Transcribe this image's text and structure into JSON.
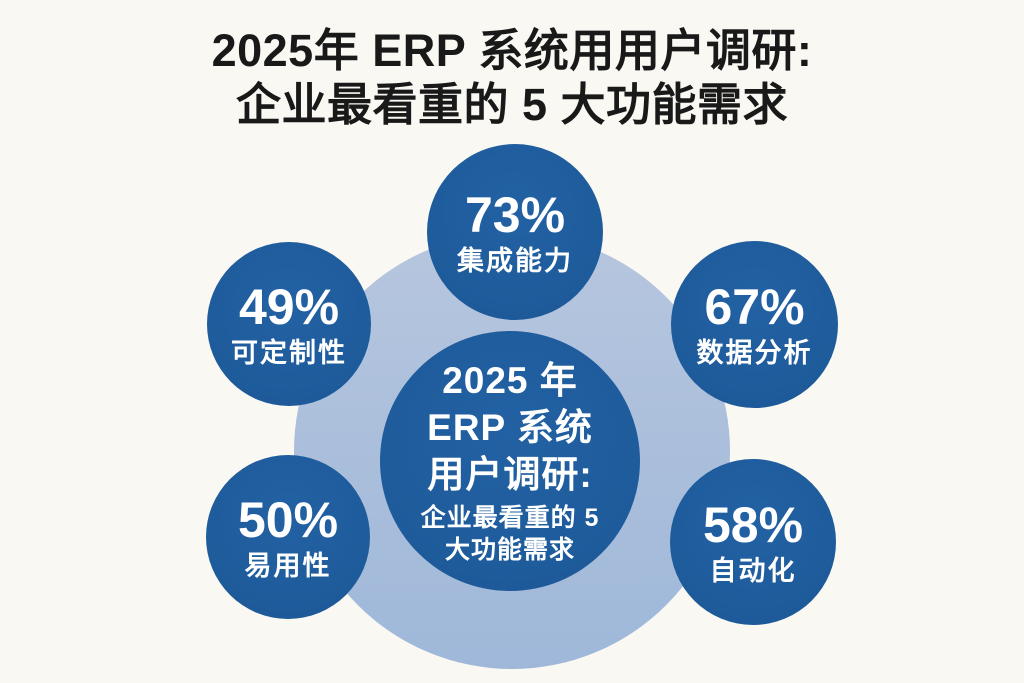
{
  "meta": {
    "background_color": "#faf8f2",
    "bubble_color": "#1e5b9b",
    "halo_color": "#a9bedb",
    "title_color": "#191919",
    "bubble_text_color": "#ffffff"
  },
  "title": {
    "line1": "2025年 ERP 系统用用户调研:",
    "line2": "企业最看重的 5 大功能需求"
  },
  "center": {
    "line1": "2025 年",
    "line2": "ERP 系统",
    "line3": "用户调研:",
    "line4": "企业最看重的 5",
    "line5": "大功能需求"
  },
  "bubbles": [
    {
      "id": "integration",
      "pct": "73%",
      "value": 73,
      "label": "集成能力"
    },
    {
      "id": "customization",
      "pct": "49%",
      "value": 49,
      "label": "可定制性"
    },
    {
      "id": "data-analysis",
      "pct": "67%",
      "value": 67,
      "label": "数据分析"
    },
    {
      "id": "ease-of-use",
      "pct": "50%",
      "value": 50,
      "label": "易用性"
    },
    {
      "id": "automation",
      "pct": "58%",
      "value": 58,
      "label": "自动化"
    }
  ],
  "chart_data": {
    "type": "bar",
    "variant": "circular-bubble-infographic",
    "title": "2025年 ERP 系统用用户调研: 企业最看重的 5 大功能需求",
    "categories": [
      "集成能力",
      "数据分析",
      "自动化",
      "易用性",
      "可定制性"
    ],
    "values": [
      73,
      67,
      58,
      50,
      49
    ],
    "unit": "%",
    "xlabel": "",
    "ylabel": "",
    "ylim": [
      0,
      100
    ],
    "legend": "none",
    "grid": false,
    "layout_positions": {
      "集成能力": "top",
      "数据分析": "upper-right",
      "自动化": "lower-right",
      "易用性": "lower-left",
      "可定制性": "upper-left"
    }
  }
}
